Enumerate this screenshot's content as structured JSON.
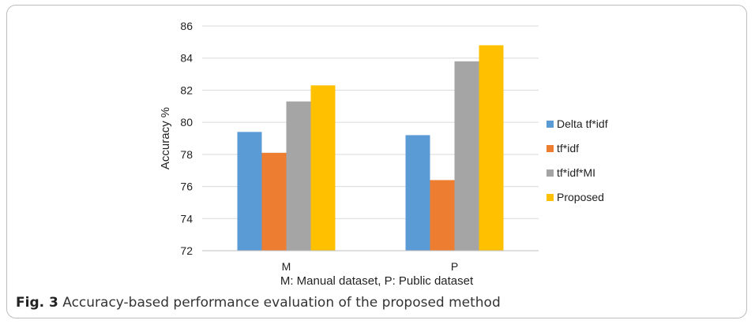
{
  "chart_data": {
    "type": "bar",
    "categories": [
      "M",
      "P"
    ],
    "series": [
      {
        "name": "Delta tf*idf",
        "values": [
          79.4,
          79.2
        ],
        "color": "#5B9BD5"
      },
      {
        "name": "tf*idf",
        "values": [
          78.1,
          76.4
        ],
        "color": "#ED7D31"
      },
      {
        "name": "tf*idf*MI",
        "values": [
          81.3,
          83.8
        ],
        "color": "#A5A5A5"
      },
      {
        "name": "Proposed",
        "values": [
          82.3,
          84.8
        ],
        "color": "#FFC000"
      }
    ],
    "xlabel": "M: Manual dataset, P: Public dataset",
    "ylabel": "Accuracy %",
    "ylim": [
      72,
      86
    ],
    "yticks": [
      "72",
      "74",
      "76",
      "78",
      "80",
      "82",
      "84",
      "86"
    ],
    "grid": true,
    "legend_position": "right"
  },
  "caption": {
    "label": "Fig. 3",
    "text": "Accuracy-based performance evaluation of the proposed method"
  }
}
